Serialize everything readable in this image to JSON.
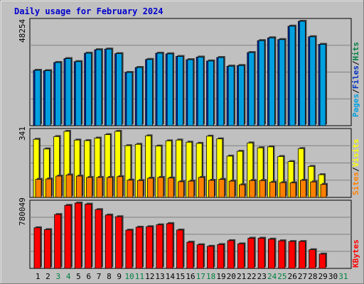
{
  "chart_data": {
    "type": "bar",
    "title": "Daily usage for February 2024",
    "colors": {
      "background": "#c0c0c0",
      "hits": "#00a0e0",
      "files": "#0030c0",
      "pages": "#00a0e0",
      "visits": "#ffff00",
      "sites": "#ff8000",
      "kbytes": "#ff0000",
      "title": "#0000cc",
      "weekend_label": "#008040",
      "weekday_label": "#000000"
    },
    "days": [
      "1",
      "2",
      "3",
      "4",
      "5",
      "6",
      "7",
      "8",
      "9",
      "10",
      "11",
      "12",
      "13",
      "14",
      "15",
      "16",
      "17",
      "18",
      "19",
      "20",
      "21",
      "22",
      "23",
      "24",
      "25",
      "26",
      "27",
      "28",
      "29",
      "30",
      "31"
    ],
    "weekend_days": [
      "3",
      "4",
      "10",
      "11",
      "17",
      "18",
      "24",
      "25",
      "31"
    ],
    "panels": {
      "hits": {
        "max_label": "48254",
        "legend": [
          "Pages",
          "/",
          "Files",
          "/",
          "Hits"
        ],
        "series": [
          {
            "name": "Hits",
            "values": [
              25600,
              25400,
              29200,
              31000,
              29600,
              33500,
              35100,
              35400,
              33300,
              24600,
              26900,
              30600,
              33500,
              33200,
              32000,
              30500,
              31700,
              29900,
              31500,
              27500,
              27800,
              33800,
              39300,
              40600,
              39800,
              46000,
              48254,
              41100,
              37600,
              0,
              0
            ]
          },
          {
            "name": "Files",
            "values": [
              25600,
              25400,
              29200,
              31000,
              29600,
              33500,
              35100,
              35400,
              33300,
              24600,
              26900,
              30600,
              33500,
              33200,
              32000,
              30500,
              31700,
              29900,
              31500,
              27500,
              27800,
              33800,
              39300,
              40600,
              39800,
              46000,
              48254,
              41100,
              37600,
              0,
              0
            ]
          },
          {
            "name": "Pages",
            "values": [
              0,
              0,
              0,
              0,
              0,
              0,
              0,
              0,
              0,
              0,
              0,
              0,
              0,
              0,
              0,
              0,
              0,
              0,
              0,
              0,
              0,
              0,
              0,
              0,
              0,
              0,
              0,
              0,
              0,
              0,
              0
            ]
          }
        ]
      },
      "visits": {
        "max_label": "341",
        "legend": [
          "Sites",
          "/",
          "Visits"
        ],
        "series": [
          {
            "name": "Visits",
            "values": [
              300,
              250,
              314,
              341,
              296,
              293,
              306,
              324,
              341,
              267,
              274,
              318,
              265,
              292,
              296,
              285,
              279,
              316,
              302,
              213,
              238,
              281,
              256,
              261,
              211,
              185,
              252,
              160,
              117,
              0,
              0
            ]
          },
          {
            "name": "Sites",
            "values": [
              93,
              95,
              110,
              116,
              110,
              103,
              103,
              103,
              107,
              89,
              87,
              99,
              103,
              100,
              81,
              84,
              103,
              88,
              93,
              84,
              65,
              87,
              87,
              78,
              76,
              75,
              88,
              80,
              67,
              0,
              0
            ]
          }
        ]
      },
      "kbytes": {
        "max_label": "780049",
        "legend": [
          "KBytes"
        ],
        "series": [
          {
            "name": "KBytes",
            "values": [
              485000,
              463000,
              643000,
              753000,
              780049,
              767000,
              702000,
              637000,
              617000,
              457000,
              492000,
              498000,
              520000,
              535000,
              458000,
              313000,
              282000,
              264000,
              285000,
              331000,
              293000,
              360000,
              360000,
              349000,
              329000,
              321000,
              321000,
              223000,
              171000,
              0,
              0
            ]
          }
        ]
      }
    }
  }
}
